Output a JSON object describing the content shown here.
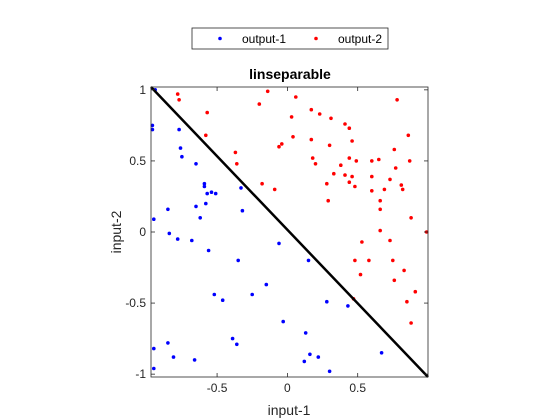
{
  "chart_data": {
    "type": "scatter",
    "title": "linseparable",
    "xlabel": "input-1",
    "ylabel": "input-2",
    "xlim": [
      -0.97,
      1.0
    ],
    "ylim": [
      -1.02,
      1.02
    ],
    "xticks": [
      -0.5,
      0,
      0.5
    ],
    "yticks": [
      -1,
      -0.5,
      0,
      0.5,
      1
    ],
    "x_tick_labels": [
      "-0.5",
      "0",
      "0.5"
    ],
    "y_tick_labels": [
      "-1",
      "-0.5",
      "0",
      "0.5",
      "1"
    ],
    "grid": false,
    "legend_placement": "top-center-outside",
    "series": [
      {
        "name": "output-1",
        "color": "#0000ff",
        "points": [
          [
            -0.94,
            1.0
          ],
          [
            -0.96,
            0.75
          ],
          [
            -0.96,
            0.72
          ],
          [
            -0.77,
            0.72
          ],
          [
            -0.76,
            0.59
          ],
          [
            -0.75,
            0.53
          ],
          [
            -0.65,
            0.48
          ],
          [
            -0.59,
            0.34
          ],
          [
            -0.59,
            0.32
          ],
          [
            -0.57,
            0.27
          ],
          [
            -0.54,
            0.28
          ],
          [
            -0.51,
            0.27
          ],
          [
            -0.65,
            0.18
          ],
          [
            -0.62,
            0.1
          ],
          [
            -0.58,
            0.2
          ],
          [
            -0.33,
            0.31
          ],
          [
            -0.32,
            0.15
          ],
          [
            -0.85,
            0.16
          ],
          [
            -0.95,
            0.09
          ],
          [
            -0.84,
            -0.01
          ],
          [
            -0.78,
            -0.05
          ],
          [
            -0.68,
            -0.06
          ],
          [
            -0.56,
            -0.13
          ],
          [
            -0.35,
            -0.2
          ],
          [
            -0.52,
            -0.44
          ],
          [
            -0.46,
            -0.48
          ],
          [
            -0.25,
            -0.44
          ],
          [
            -0.15,
            -0.37
          ],
          [
            -0.85,
            -0.78
          ],
          [
            -0.81,
            -0.88
          ],
          [
            -0.66,
            -0.9
          ],
          [
            -0.39,
            -0.75
          ],
          [
            -0.36,
            -0.79
          ],
          [
            -0.95,
            -0.82
          ],
          [
            -0.95,
            -0.96
          ],
          [
            -0.06,
            -0.08
          ],
          [
            0.15,
            -0.2
          ],
          [
            0.28,
            -0.49
          ],
          [
            -0.03,
            -0.63
          ],
          [
            0.13,
            -0.71
          ],
          [
            0.12,
            -0.91
          ],
          [
            0.16,
            -0.86
          ],
          [
            0.22,
            -0.88
          ],
          [
            0.3,
            -0.98
          ],
          [
            0.43,
            -0.52
          ],
          [
            0.67,
            -0.85
          ]
        ]
      },
      {
        "name": "output-2",
        "color": "#ff0000",
        "points": [
          [
            -0.78,
            0.97
          ],
          [
            -0.77,
            0.93
          ],
          [
            -0.57,
            0.84
          ],
          [
            -0.58,
            0.68
          ],
          [
            -0.37,
            0.56
          ],
          [
            -0.36,
            0.48
          ],
          [
            -0.2,
            0.9
          ],
          [
            -0.14,
            0.99
          ],
          [
            -0.18,
            0.34
          ],
          [
            -0.09,
            0.3
          ],
          [
            0.06,
            0.95
          ],
          [
            0.17,
            0.86
          ],
          [
            0.23,
            0.83
          ],
          [
            -0.06,
            0.6
          ],
          [
            -0.04,
            0.62
          ],
          [
            0.04,
            0.67
          ],
          [
            0.03,
            0.81
          ],
          [
            0.18,
            0.52
          ],
          [
            0.17,
            0.65
          ],
          [
            0.2,
            0.48
          ],
          [
            0.3,
            0.61
          ],
          [
            0.31,
            0.8
          ],
          [
            0.41,
            0.76
          ],
          [
            0.44,
            0.73
          ],
          [
            0.46,
            0.64
          ],
          [
            0.44,
            0.52
          ],
          [
            0.38,
            0.47
          ],
          [
            0.49,
            0.5
          ],
          [
            0.46,
            0.39
          ],
          [
            0.41,
            0.4
          ],
          [
            0.33,
            0.41
          ],
          [
            0.28,
            0.34
          ],
          [
            0.29,
            0.22
          ],
          [
            0.44,
            0.35
          ],
          [
            0.48,
            0.32
          ],
          [
            0.6,
            0.5
          ],
          [
            0.65,
            0.51
          ],
          [
            0.6,
            0.39
          ],
          [
            0.6,
            0.29
          ],
          [
            0.66,
            0.22
          ],
          [
            0.66,
            0.16
          ],
          [
            0.69,
            0.3
          ],
          [
            0.73,
            0.37
          ],
          [
            0.76,
            0.58
          ],
          [
            0.77,
            0.45
          ],
          [
            0.81,
            0.33
          ],
          [
            0.82,
            0.3
          ],
          [
            0.78,
            0.93
          ],
          [
            0.86,
            0.68
          ],
          [
            0.87,
            0.5
          ],
          [
            0.88,
            0.1
          ],
          [
            0.66,
            0.01
          ],
          [
            0.53,
            -0.07
          ],
          [
            0.73,
            -0.06
          ],
          [
            0.48,
            -0.2
          ],
          [
            0.58,
            -0.2
          ],
          [
            0.75,
            -0.2
          ],
          [
            0.83,
            -0.27
          ],
          [
            0.76,
            -0.34
          ],
          [
            0.52,
            -0.3
          ],
          [
            0.47,
            -0.47
          ],
          [
            0.85,
            -0.49
          ],
          [
            0.91,
            -0.42
          ],
          [
            0.88,
            -0.64
          ],
          [
            0.99,
            0.0
          ]
        ]
      }
    ],
    "line": {
      "from": [
        -0.97,
        1.02
      ],
      "to": [
        1.0,
        -1.02
      ],
      "color": "#000000"
    }
  }
}
